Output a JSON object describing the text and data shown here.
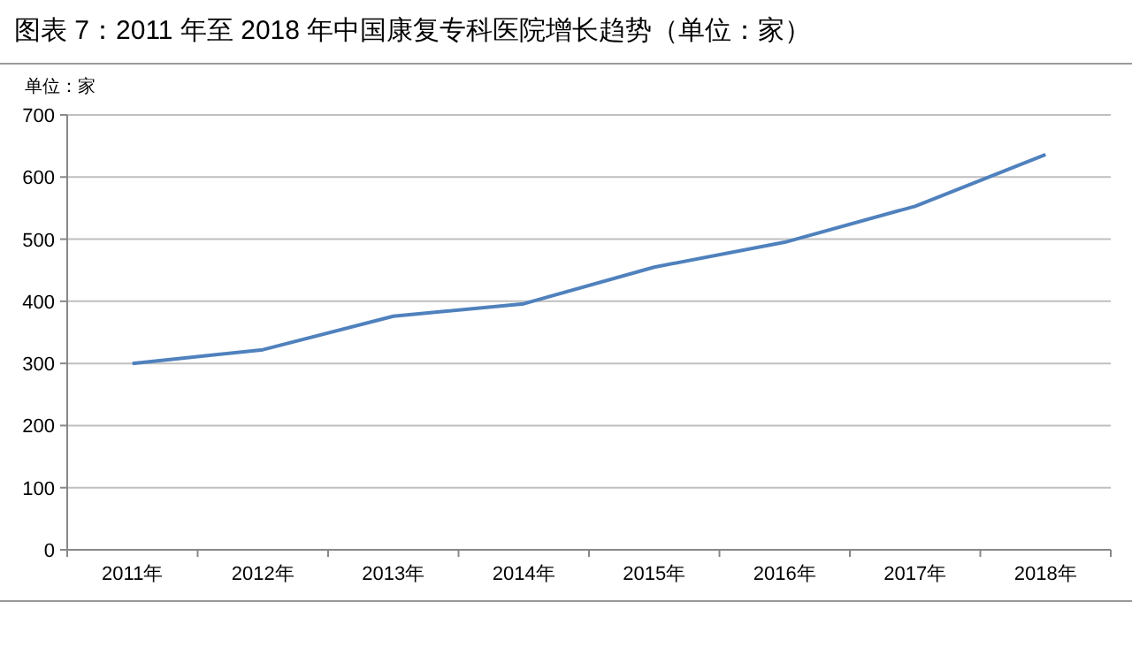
{
  "chart_data": {
    "type": "line",
    "title": "图表 7：2011 年至 2018 年中国康复专科医院增长趋势（单位：家）",
    "ylabel": "单位：家",
    "categories": [
      "2011年",
      "2012年",
      "2013年",
      "2014年",
      "2015年",
      "2016年",
      "2017年",
      "2018年"
    ],
    "series": [
      {
        "color": "#4f81bd",
        "values": [
          300,
          322,
          376,
          396,
          455,
          495,
          553,
          636
        ]
      }
    ],
    "ylim": [
      0,
      700
    ],
    "yticks": [
      0,
      100,
      200,
      300,
      400,
      500,
      600,
      700
    ],
    "grid": "y",
    "marker": "none",
    "line_style": "solid"
  }
}
